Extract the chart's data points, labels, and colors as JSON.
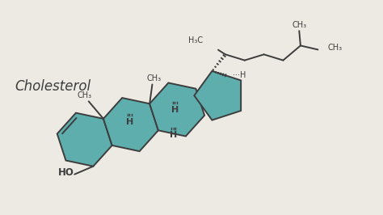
{
  "bg_color": "#ede9e3",
  "ring_fill": "#5faeae",
  "ring_edge": "#3d3d3d",
  "line_color": "#3d3d3d",
  "text_color": "#3d3d3d",
  "title": "Cholesterol",
  "figsize": [
    4.74,
    2.66
  ],
  "dpi": 100,
  "xlim": [
    0,
    14
  ],
  "ylim": [
    0,
    8
  ]
}
